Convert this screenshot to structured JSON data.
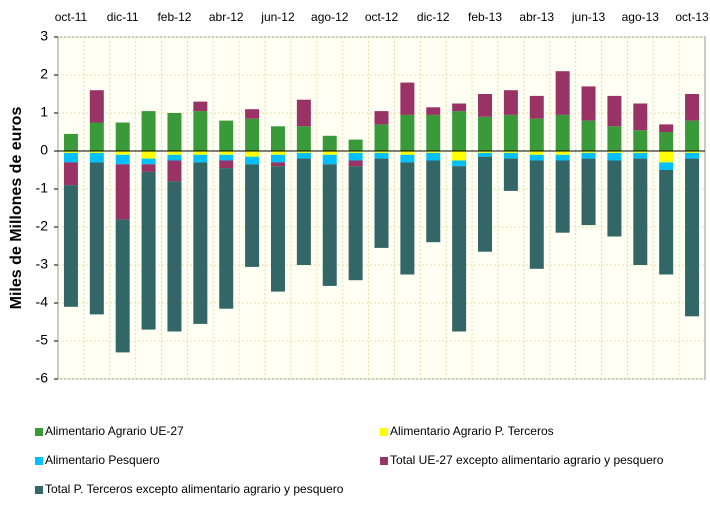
{
  "chart_data": {
    "type": "bar",
    "stacked": true,
    "y_label": "Miles de Millones de euros",
    "categories": [
      "oct-11",
      null,
      "dic-11",
      null,
      "feb-12",
      null,
      "abr-12",
      null,
      "jun-12",
      null,
      "ago-12",
      null,
      "oct-12",
      null,
      "dic-12",
      null,
      "feb-13",
      null,
      "abr-13",
      null,
      "jun-13",
      null,
      "ago-13",
      null,
      "oct-13"
    ],
    "series": [
      {
        "name": "Alimentario Agrario UE-27",
        "color": "#3a9a3a",
        "values": [
          0.45,
          0.75,
          0.75,
          1.05,
          1.0,
          1.05,
          0.8,
          0.85,
          0.65,
          0.65,
          0.4,
          0.3,
          0.7,
          0.95,
          0.95,
          1.05,
          0.9,
          0.95,
          0.85,
          0.95,
          0.8,
          0.65,
          0.55,
          0.5,
          0.8
        ]
      },
      {
        "name": "Alimentario Agrario P. Terceros",
        "color": "#ffff00",
        "values": [
          -0.05,
          -0.05,
          -0.1,
          -0.2,
          -0.1,
          -0.1,
          -0.1,
          -0.15,
          -0.1,
          -0.05,
          -0.1,
          -0.05,
          -0.05,
          -0.1,
          -0.05,
          -0.25,
          -0.05,
          -0.05,
          -0.1,
          -0.1,
          -0.05,
          -0.05,
          -0.05,
          -0.3,
          -0.05
        ]
      },
      {
        "name": "Alimentario Pesquero",
        "color": "#00c0ff",
        "values": [
          -0.25,
          -0.25,
          -0.25,
          -0.15,
          -0.15,
          -0.2,
          -0.15,
          -0.2,
          -0.2,
          -0.15,
          -0.25,
          -0.2,
          -0.15,
          -0.2,
          -0.2,
          -0.15,
          -0.1,
          -0.15,
          -0.15,
          -0.15,
          -0.15,
          -0.2,
          -0.15,
          -0.2,
          -0.15
        ]
      },
      {
        "name": "Total UE-27 excepto alimentario agrario y pesquero",
        "color": "#993366",
        "values": [
          -0.6,
          0.85,
          -1.45,
          -0.2,
          -0.55,
          0.25,
          -0.2,
          0.25,
          -0.1,
          0.7,
          0,
          -0.15,
          0.35,
          0.85,
          0.2,
          0.2,
          0.6,
          0.65,
          0.6,
          1.15,
          0.9,
          0.8,
          0.7,
          0.2,
          0.7
        ]
      },
      {
        "name": "Total P. Terceros excepto alimentario agrario y pesquero",
        "color": "#336666",
        "values": [
          -3.2,
          -4.0,
          -3.5,
          -4.15,
          -3.95,
          -4.25,
          -3.7,
          -2.7,
          -3.3,
          -2.8,
          -3.2,
          -3.0,
          -2.35,
          -2.95,
          -2.15,
          -4.35,
          -2.5,
          -0.85,
          -2.85,
          -1.9,
          -1.75,
          -2.0,
          -2.8,
          -2.75,
          -4.15
        ]
      }
    ],
    "ylim": [
      -6,
      3
    ],
    "yticks": [
      -6,
      -5,
      -4,
      -3,
      -2,
      -1,
      0,
      1,
      2,
      3
    ],
    "grid": true
  }
}
